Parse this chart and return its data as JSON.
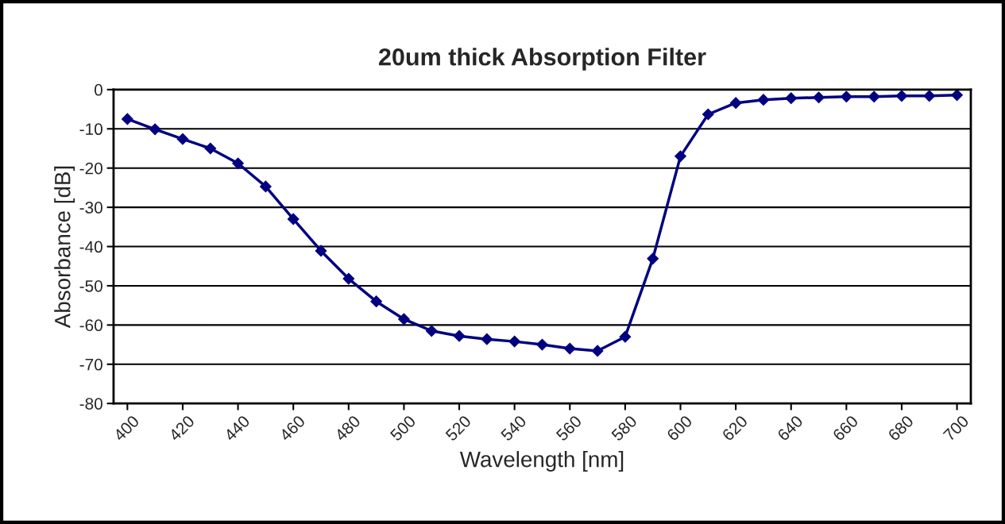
{
  "chart_data": {
    "type": "line",
    "title": "20um thick Absorption Filter",
    "xlabel": "Wavelength [nm]",
    "ylabel": "Absorbance [dB]",
    "x": [
      400,
      410,
      420,
      430,
      440,
      450,
      460,
      470,
      480,
      490,
      500,
      510,
      520,
      530,
      540,
      550,
      560,
      570,
      580,
      590,
      600,
      610,
      620,
      630,
      640,
      650,
      660,
      670,
      680,
      690,
      700
    ],
    "series": [
      {
        "color": "#000080",
        "values": [
          -7.5,
          -10.1,
          -12.6,
          -15,
          -18.8,
          -24.7,
          -33,
          -41.1,
          -48.2,
          -54,
          -58.5,
          -61.5,
          -62.8,
          -63.6,
          -64.2,
          -65,
          -66,
          -66.6,
          -63,
          -43.1,
          -17,
          -6.3,
          -3.4,
          -2.6,
          -2.2,
          -2,
          -1.8,
          -1.8,
          -1.6,
          -1.6,
          -1.4
        ]
      }
    ],
    "xlim": [
      395,
      705
    ],
    "xticks": [
      400,
      420,
      440,
      460,
      480,
      500,
      520,
      540,
      560,
      580,
      600,
      620,
      640,
      660,
      680,
      700
    ],
    "ylim": [
      -80,
      0
    ],
    "yticks": [
      -80,
      -70,
      -60,
      -50,
      -40,
      -30,
      -20,
      -10,
      0
    ],
    "grid": "y",
    "marker": "diamond",
    "line_style": "solid",
    "legend": false
  }
}
